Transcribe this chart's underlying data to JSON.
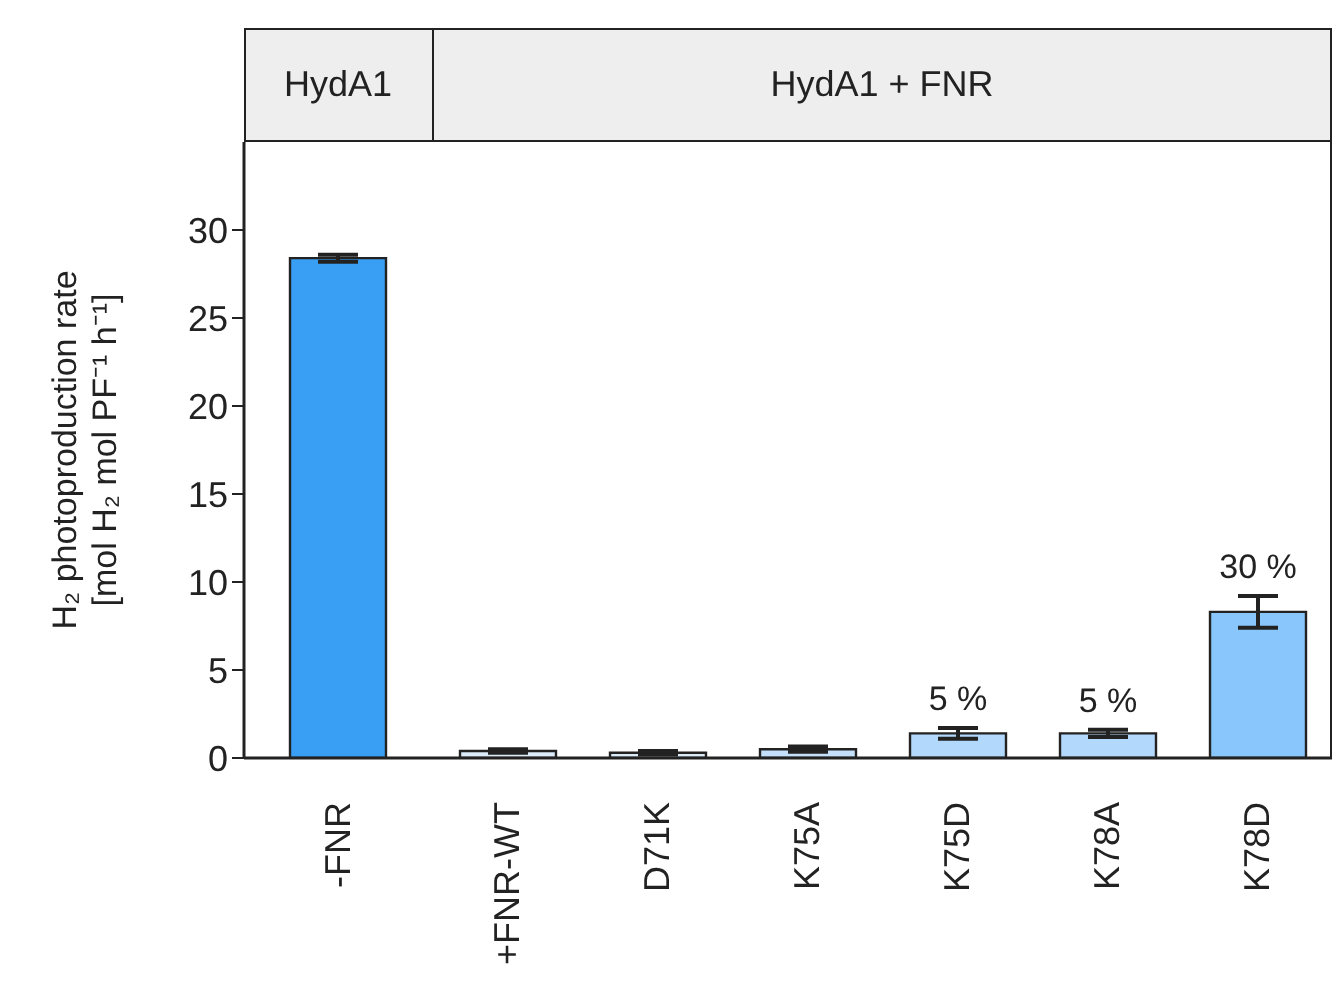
{
  "chart_data": [
    {
      "type": "bar",
      "title": "HydA1",
      "ylabel": "H₂ photoproduction rate [mol H₂ mol PF⁻¹ h⁻¹]",
      "categories": [
        "-FNR"
      ],
      "values": [
        28.4
      ],
      "errors": [
        0.2
      ],
      "colors": [
        "#389ff5"
      ],
      "ylim": [
        0,
        35
      ],
      "yticks": [
        0,
        5,
        10,
        15,
        20,
        25,
        30
      ],
      "grid": false,
      "legend": false
    },
    {
      "type": "bar",
      "title": "HydA1 + FNR",
      "categories": [
        "+FNR-WT",
        "D71K",
        "K75A",
        "K75D",
        "K78A",
        "K78D"
      ],
      "values": [
        0.4,
        0.3,
        0.5,
        1.4,
        1.4,
        8.3
      ],
      "errors": [
        0.1,
        0.1,
        0.15,
        0.3,
        0.2,
        0.9
      ],
      "colors": [
        "#dcebf8",
        "#dcebf8",
        "#c4e0fa",
        "#b2d8fb",
        "#b2d8fb",
        "#88c6fb"
      ],
      "annotations": [
        {
          "text": "5 %",
          "x": "K75D",
          "y": 1.4
        },
        {
          "text": "5 %",
          "x": "K78A",
          "y": 1.4
        },
        {
          "text": "30 %",
          "x": "K78D",
          "y": 8.3
        }
      ],
      "ylim": [
        0,
        35
      ],
      "yticks": [
        0,
        5,
        10,
        15,
        20,
        25,
        30
      ],
      "tick_labels": "x",
      "grid": false,
      "legend": false
    }
  ]
}
